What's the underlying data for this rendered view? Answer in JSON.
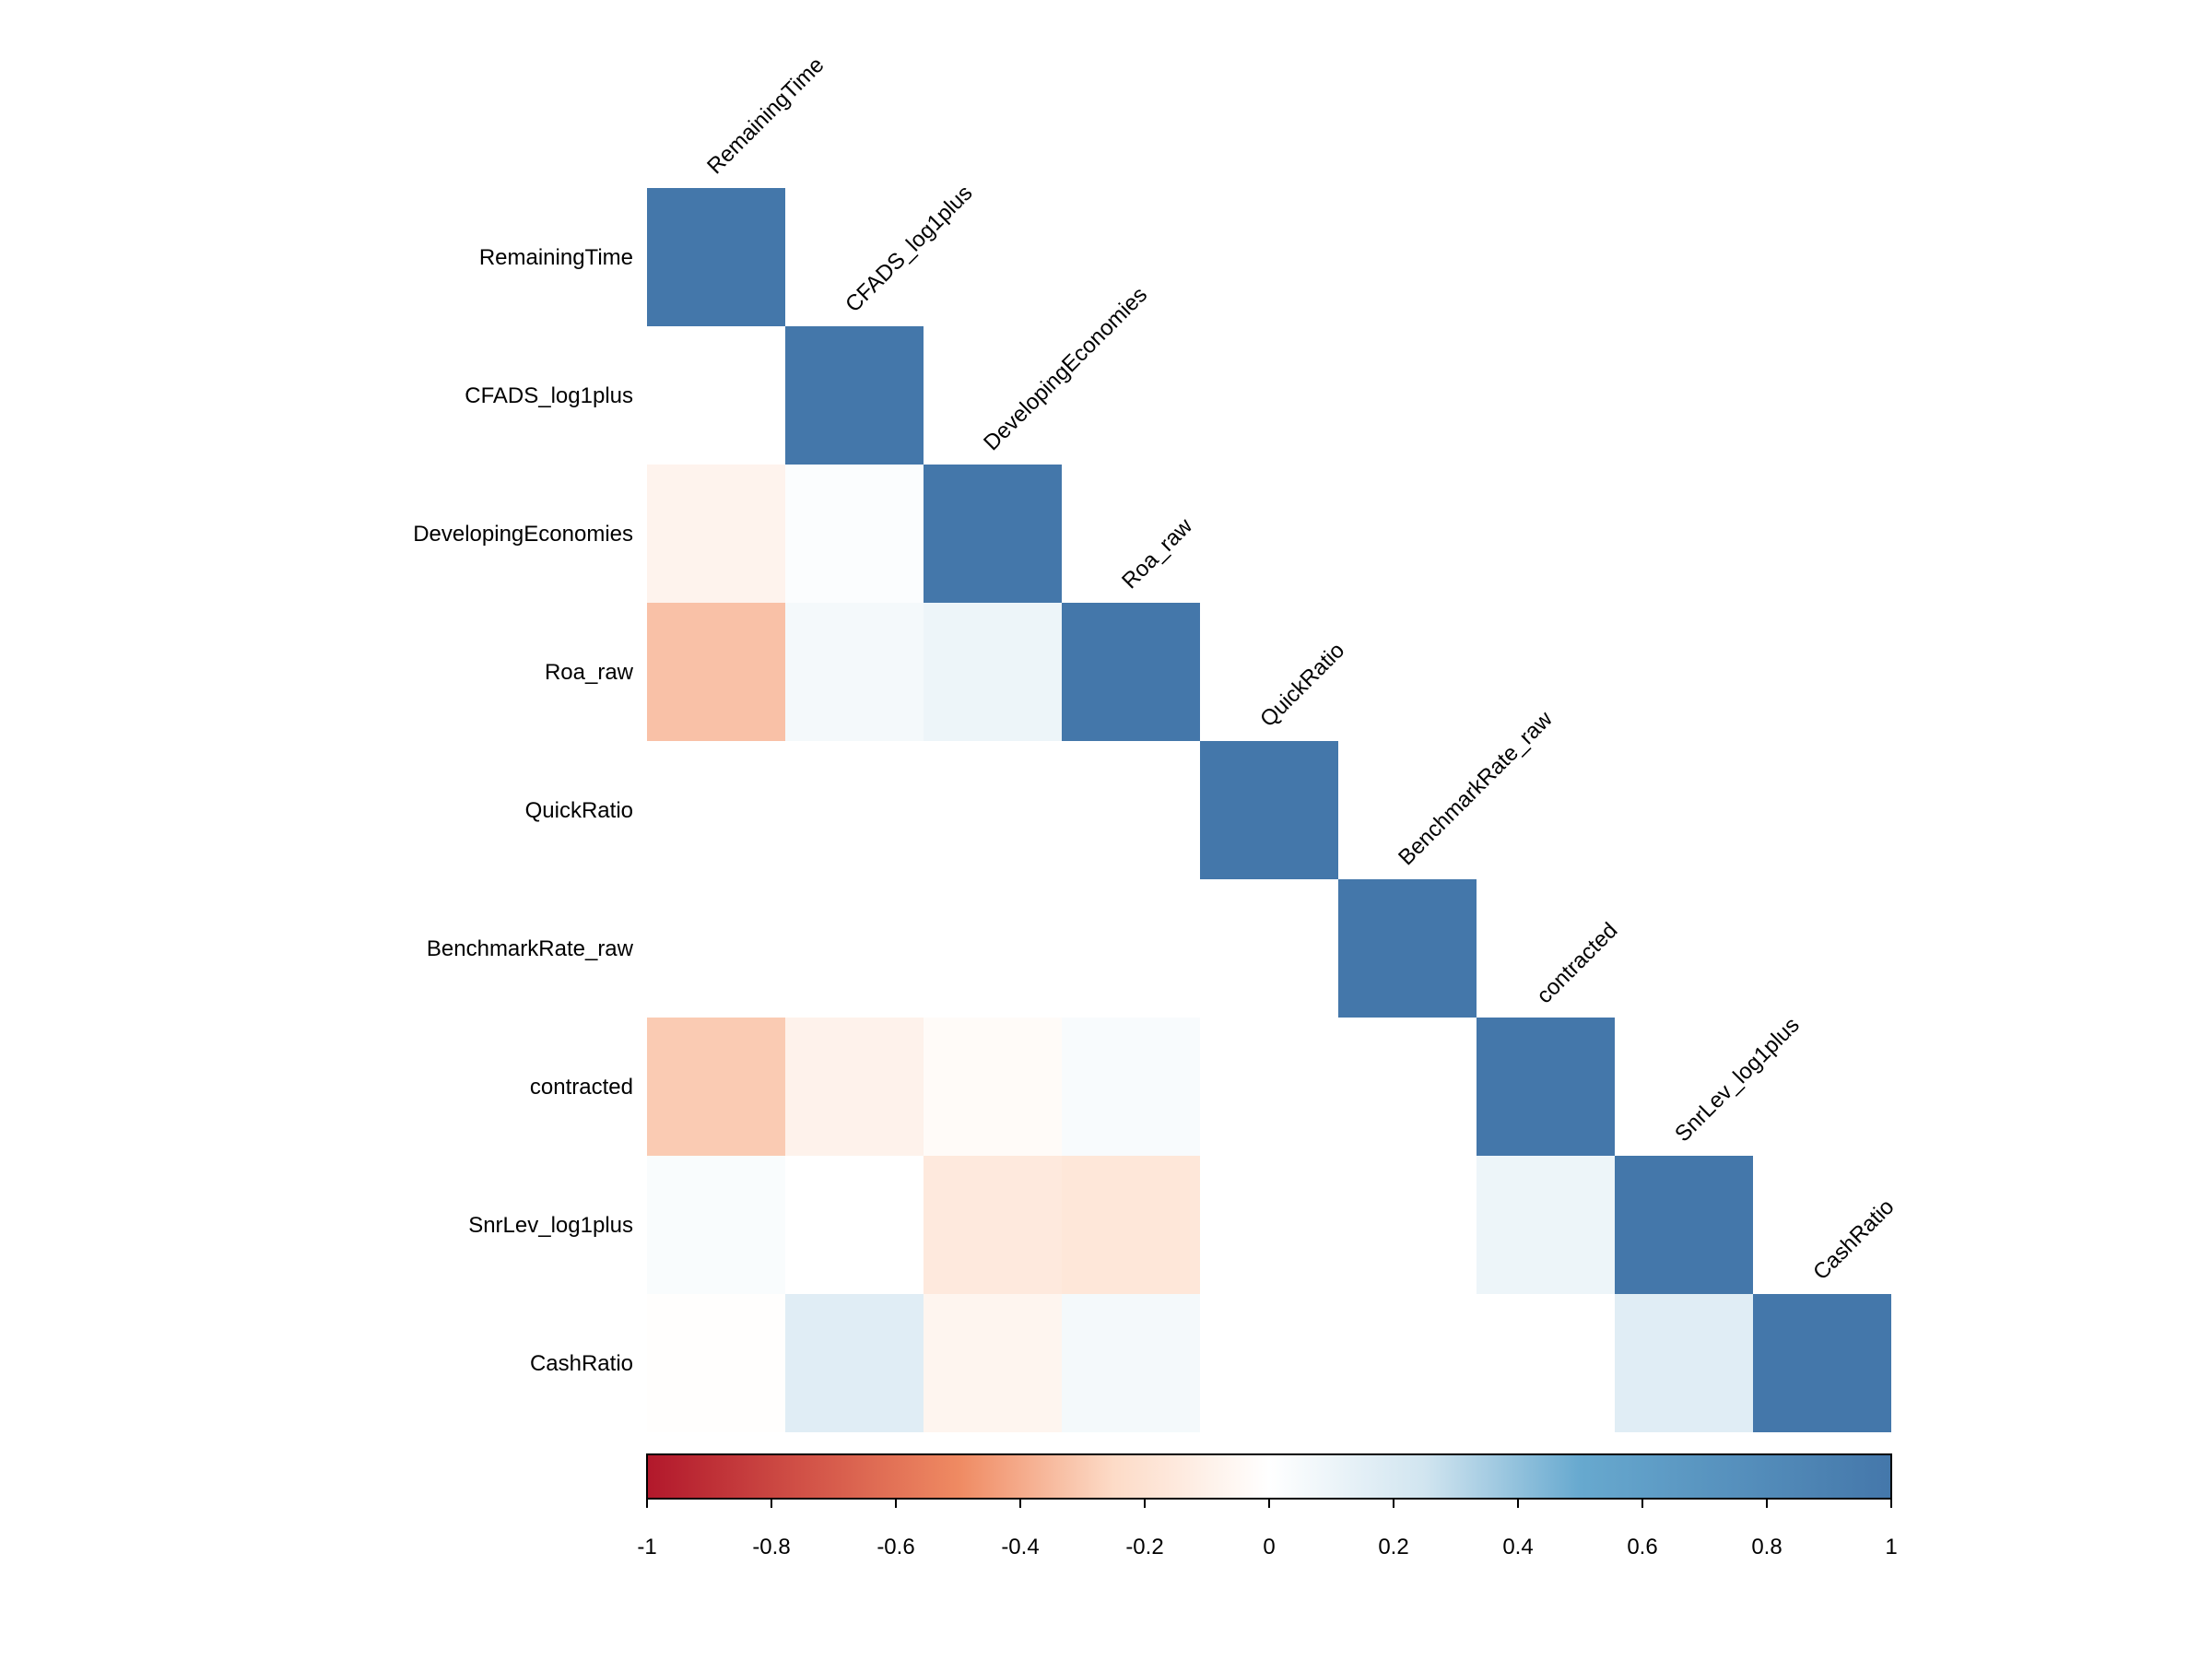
{
  "chart_data": {
    "type": "heatmap",
    "variables": [
      "RemainingTime",
      "CFADS_log1plus",
      "DevelopingEconomies",
      "Roa_raw",
      "QuickRatio",
      "BenchmarkRate_raw",
      "contracted",
      "SnrLev_log1plus",
      "CashRatio"
    ],
    "matrix": [
      [
        1.0,
        0.0,
        -0.08,
        -0.33,
        0.0,
        0.0,
        -0.3,
        0.03,
        -0.01
      ],
      [
        0.0,
        1.0,
        0.02,
        0.06,
        0.0,
        0.0,
        -0.09,
        0.0,
        0.17
      ],
      [
        -0.08,
        0.02,
        1.0,
        0.1,
        0.0,
        0.0,
        -0.03,
        -0.15,
        -0.07
      ],
      [
        -0.33,
        0.06,
        0.1,
        1.0,
        0.0,
        0.0,
        0.04,
        -0.17,
        0.06
      ],
      [
        0.0,
        0.0,
        0.0,
        0.0,
        1.0,
        0.0,
        0.0,
        0.0,
        0.0
      ],
      [
        0.0,
        0.0,
        0.0,
        0.0,
        0.0,
        1.0,
        0.0,
        0.0,
        0.0
      ],
      [
        -0.3,
        -0.09,
        -0.03,
        0.04,
        0.0,
        0.0,
        1.0,
        0.1,
        0.0
      ],
      [
        0.03,
        0.0,
        -0.15,
        -0.17,
        0.0,
        0.0,
        0.1,
        1.0,
        0.17
      ],
      [
        -0.01,
        0.17,
        -0.07,
        0.06,
        0.0,
        0.0,
        0.0,
        0.17,
        1.0
      ]
    ],
    "display": "lower-triangle",
    "color_scale": {
      "range": [
        -1,
        1
      ],
      "stops": [
        {
          "value": -1,
          "color": "#b2182b"
        },
        {
          "value": -0.5,
          "color": "#ef8a62"
        },
        {
          "value": -0.25,
          "color": "#fddbc7"
        },
        {
          "value": 0,
          "color": "#ffffff"
        },
        {
          "value": 0.25,
          "color": "#d1e5f0"
        },
        {
          "value": 0.5,
          "color": "#67a9cf"
        },
        {
          "value": 1,
          "color": "#4477aa"
        }
      ],
      "ticks": [
        "-1",
        "-0.8",
        "-0.6",
        "-0.4",
        "-0.2",
        "0",
        "0.2",
        "0.4",
        "0.6",
        "0.8",
        "1"
      ]
    },
    "legend": "colorbar-bottom"
  }
}
